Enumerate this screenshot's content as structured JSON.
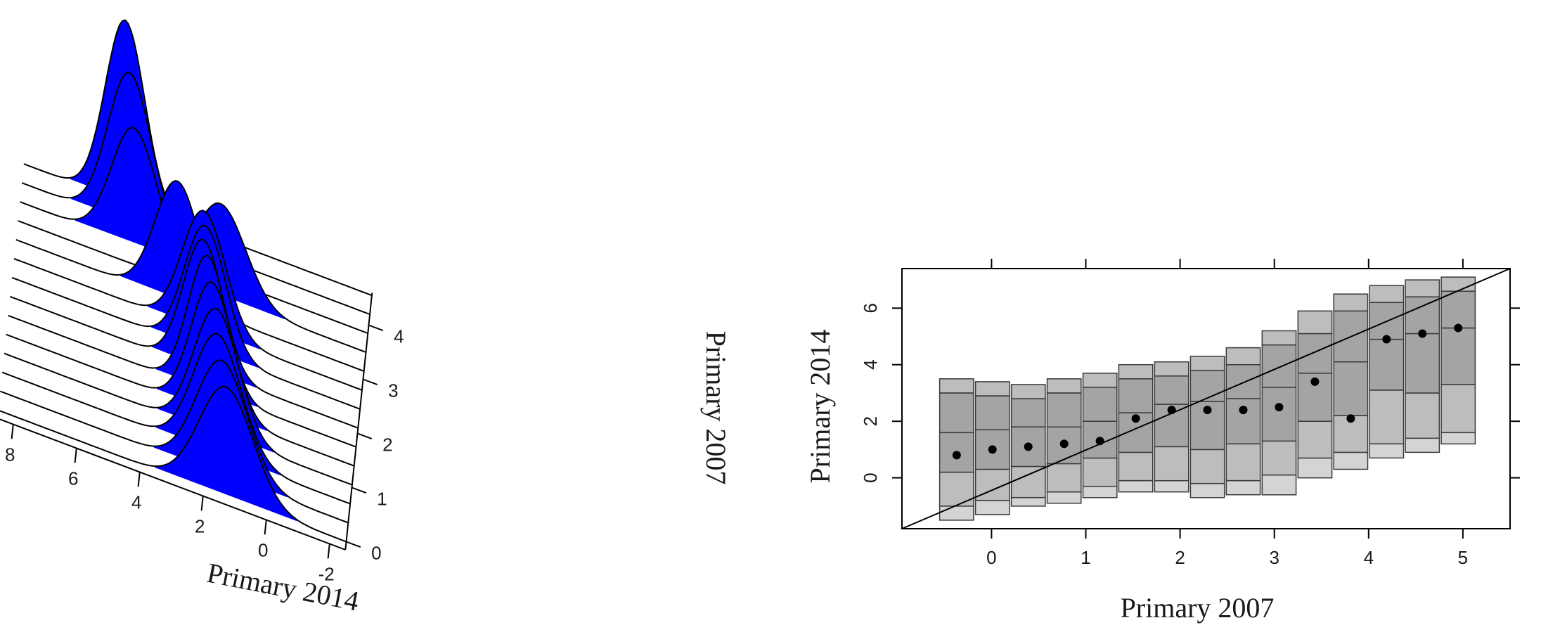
{
  "chart_data": [
    {
      "type": "ridgeline-3d",
      "xlabel": "Primary 2014",
      "ylabel": "Primary 2007",
      "x_ticks": [
        "8",
        "6",
        "4",
        "2",
        "0",
        "-2"
      ],
      "y_ticks": [
        "0",
        "1",
        "2",
        "3",
        "4"
      ],
      "x_range": [
        -2.5,
        8.5
      ],
      "y_range": [
        -0.15,
        4.8
      ],
      "fill_color": "#0000ff",
      "ridges": [
        {
          "y": 0.0,
          "mean": 1.3,
          "sd": 0.85,
          "peak": 0.42
        },
        {
          "y": 0.35,
          "mean": 1.5,
          "sd": 0.8,
          "peak": 0.44
        },
        {
          "y": 0.7,
          "mean": 1.7,
          "sd": 0.75,
          "peak": 0.46
        },
        {
          "y": 1.05,
          "mean": 1.8,
          "sd": 0.7,
          "peak": 0.48
        },
        {
          "y": 1.4,
          "mean": 2.0,
          "sd": 0.65,
          "peak": 0.5
        },
        {
          "y": 1.75,
          "mean": 2.2,
          "sd": 0.6,
          "peak": 0.52
        },
        {
          "y": 2.1,
          "mean": 2.4,
          "sd": 0.62,
          "peak": 0.5
        },
        {
          "y": 2.45,
          "mean": 2.4,
          "sd": 0.65,
          "peak": 0.48
        },
        {
          "y": 2.8,
          "mean": 2.5,
          "sd": 0.68,
          "peak": 0.46
        },
        {
          "y": 3.15,
          "mean": 3.4,
          "sd": 0.7,
          "peak": 0.46
        },
        {
          "y": 3.5,
          "mean": 2.1,
          "sd": 0.8,
          "peak": 0.36
        },
        {
          "y": 3.85,
          "mean": 4.9,
          "sd": 0.7,
          "peak": 0.45
        },
        {
          "y": 4.2,
          "mean": 5.1,
          "sd": 0.68,
          "peak": 0.58
        },
        {
          "y": 4.55,
          "mean": 5.3,
          "sd": 0.62,
          "peak": 0.7
        }
      ]
    },
    {
      "type": "boxplot",
      "xlabel": "Primary 2007",
      "ylabel": "Primary 2014",
      "xlim": [
        -0.95,
        5.5
      ],
      "ylim": [
        -1.8,
        7.4
      ],
      "x_ticks": [
        0,
        1,
        2,
        3,
        4,
        5
      ],
      "y_ticks": [
        0,
        2,
        4,
        6
      ],
      "reference_line": {
        "from": [
          -0.95,
          -1.8
        ],
        "to": [
          5.5,
          7.4
        ]
      },
      "box_width": 0.36,
      "boxes": [
        {
          "x": -0.37,
          "min": -1.5,
          "max": 3.5,
          "inner": [
            -1.0,
            0.2,
            1.6,
            3.0
          ],
          "median": 0.8
        },
        {
          "x": 0.01,
          "min": -1.3,
          "max": 3.4,
          "inner": [
            -0.8,
            0.3,
            1.7,
            2.9
          ],
          "median": 1.0
        },
        {
          "x": 0.39,
          "min": -1.0,
          "max": 3.3,
          "inner": [
            -0.7,
            0.4,
            1.8,
            2.8
          ],
          "median": 1.1
        },
        {
          "x": 0.77,
          "min": -0.9,
          "max": 3.5,
          "inner": [
            -0.5,
            0.5,
            1.8,
            3.0
          ],
          "median": 1.2
        },
        {
          "x": 1.15,
          "min": -0.7,
          "max": 3.7,
          "inner": [
            -0.3,
            0.7,
            2.0,
            3.2
          ],
          "median": 1.3
        },
        {
          "x": 1.53,
          "min": -0.5,
          "max": 4.0,
          "inner": [
            -0.1,
            0.9,
            2.3,
            3.5
          ],
          "median": 2.1
        },
        {
          "x": 1.91,
          "min": -0.5,
          "max": 4.1,
          "inner": [
            -0.1,
            1.1,
            2.6,
            3.6
          ],
          "median": 2.4
        },
        {
          "x": 2.29,
          "min": -0.7,
          "max": 4.3,
          "inner": [
            -0.2,
            1.0,
            2.7,
            3.8
          ],
          "median": 2.4
        },
        {
          "x": 2.67,
          "min": -0.6,
          "max": 4.6,
          "inner": [
            -0.1,
            1.2,
            2.8,
            4.0
          ],
          "median": 2.4
        },
        {
          "x": 3.05,
          "min": -0.6,
          "max": 5.2,
          "inner": [
            0.1,
            1.3,
            3.2,
            4.7
          ],
          "median": 2.5
        },
        {
          "x": 3.43,
          "min": 0.0,
          "max": 5.9,
          "inner": [
            0.7,
            2.0,
            3.7,
            5.1
          ],
          "median": 3.4
        },
        {
          "x": 3.81,
          "min": 0.3,
          "max": 6.5,
          "inner": [
            0.9,
            2.2,
            4.1,
            5.9
          ],
          "median": 2.1
        },
        {
          "x": 4.19,
          "min": 0.7,
          "max": 6.8,
          "inner": [
            1.2,
            3.1,
            4.9,
            6.2
          ],
          "median": 4.9
        },
        {
          "x": 4.57,
          "min": 0.9,
          "max": 7.0,
          "inner": [
            1.4,
            3.0,
            5.1,
            6.4
          ],
          "median": 5.1
        },
        {
          "x": 4.95,
          "min": 1.2,
          "max": 7.1,
          "inner": [
            1.6,
            3.3,
            5.3,
            6.6
          ],
          "median": 5.3
        }
      ]
    }
  ]
}
